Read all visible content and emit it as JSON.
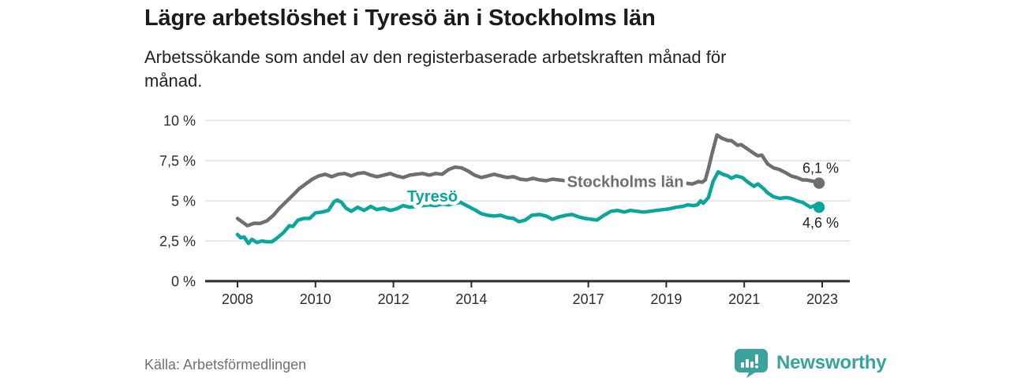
{
  "header": {
    "title": "Lägre arbetslöshet i Tyresö än i Stockholms län",
    "subtitle_line1": "Arbetssökande som andel av den registerbaserade arbetskraften månad för",
    "subtitle_line2": "månad."
  },
  "footer": {
    "source": "Källa: Arbetsförmedlingen",
    "brand": "Newsworthy"
  },
  "colors": {
    "tyreso_line": "#0aa59b",
    "stockholm_line": "#6e6e73",
    "axis": "#2b2b2e",
    "grid": "#d9d9d9",
    "tick_text": "#2d2d2d",
    "end_label_text": "#222222",
    "logo_teal": "#3ba29d"
  },
  "chart_data": {
    "type": "line",
    "title": "Lägre arbetslöshet i Tyresö än i Stockholms län",
    "subtitle": "Arbetssökande som andel av den registerbaserade arbetskraften månad för månad.",
    "xlabel": "",
    "ylabel": "",
    "xlim": [
      2007.2,
      2023.9
    ],
    "ylim": [
      0,
      10
    ],
    "grid": true,
    "legend_position": "inline-labels",
    "yticks": [
      {
        "v": 0,
        "label": "0 %"
      },
      {
        "v": 2.5,
        "label": "2,5 %"
      },
      {
        "v": 5,
        "label": "5 %"
      },
      {
        "v": 7.5,
        "label": "7,5 %"
      },
      {
        "v": 10,
        "label": "10 %"
      }
    ],
    "xticks": [
      {
        "v": 2008,
        "label": "2008"
      },
      {
        "v": 2010,
        "label": "2010"
      },
      {
        "v": 2012,
        "label": "2012"
      },
      {
        "v": 2014,
        "label": "2014"
      },
      {
        "v": 2017,
        "label": "2017"
      },
      {
        "v": 2019,
        "label": "2019"
      },
      {
        "v": 2021,
        "label": "2021"
      },
      {
        "v": 2023,
        "label": "2023"
      }
    ],
    "series": [
      {
        "name": "Stockholms län",
        "color": "#6e6e73",
        "end_label": "6,1 %",
        "end_label_position": "above",
        "label_anchor": {
          "year": 2017.95,
          "value": 6.2
        },
        "points": [
          [
            2008.0,
            3.9
          ],
          [
            2008.17,
            3.6
          ],
          [
            2008.25,
            3.45
          ],
          [
            2008.42,
            3.6
          ],
          [
            2008.58,
            3.6
          ],
          [
            2008.75,
            3.75
          ],
          [
            2008.92,
            4.1
          ],
          [
            2009.08,
            4.55
          ],
          [
            2009.25,
            4.95
          ],
          [
            2009.42,
            5.35
          ],
          [
            2009.58,
            5.75
          ],
          [
            2009.75,
            6.05
          ],
          [
            2009.92,
            6.35
          ],
          [
            2010.08,
            6.55
          ],
          [
            2010.25,
            6.65
          ],
          [
            2010.42,
            6.5
          ],
          [
            2010.58,
            6.65
          ],
          [
            2010.75,
            6.7
          ],
          [
            2010.92,
            6.55
          ],
          [
            2011.08,
            6.7
          ],
          [
            2011.25,
            6.75
          ],
          [
            2011.42,
            6.6
          ],
          [
            2011.58,
            6.5
          ],
          [
            2011.75,
            6.6
          ],
          [
            2011.92,
            6.7
          ],
          [
            2012.08,
            6.55
          ],
          [
            2012.25,
            6.45
          ],
          [
            2012.42,
            6.6
          ],
          [
            2012.58,
            6.65
          ],
          [
            2012.75,
            6.7
          ],
          [
            2012.92,
            6.6
          ],
          [
            2013.08,
            6.7
          ],
          [
            2013.25,
            6.65
          ],
          [
            2013.42,
            6.95
          ],
          [
            2013.58,
            7.1
          ],
          [
            2013.75,
            7.05
          ],
          [
            2013.92,
            6.85
          ],
          [
            2014.08,
            6.6
          ],
          [
            2014.25,
            6.45
          ],
          [
            2014.42,
            6.55
          ],
          [
            2014.58,
            6.65
          ],
          [
            2014.75,
            6.55
          ],
          [
            2014.92,
            6.45
          ],
          [
            2015.08,
            6.5
          ],
          [
            2015.25,
            6.35
          ],
          [
            2015.42,
            6.3
          ],
          [
            2015.58,
            6.4
          ],
          [
            2015.75,
            6.3
          ],
          [
            2015.92,
            6.25
          ],
          [
            2016.08,
            6.35
          ],
          [
            2016.25,
            6.3
          ],
          [
            2016.42,
            6.25
          ],
          [
            2016.58,
            6.2
          ],
          [
            2016.75,
            6.15
          ],
          [
            2016.92,
            6.1
          ],
          [
            2017.08,
            6.15
          ],
          [
            2017.25,
            6.1
          ],
          [
            2017.5,
            6.05
          ],
          [
            2017.75,
            6.0
          ],
          [
            2018.0,
            6.0
          ],
          [
            2018.25,
            6.05
          ],
          [
            2018.5,
            6.1
          ],
          [
            2018.75,
            6.05
          ],
          [
            2019.0,
            6.1
          ],
          [
            2019.25,
            6.15
          ],
          [
            2019.5,
            6.1
          ],
          [
            2019.67,
            6.05
          ],
          [
            2019.83,
            6.2
          ],
          [
            2019.92,
            6.15
          ],
          [
            2020.0,
            6.3
          ],
          [
            2020.08,
            7.0
          ],
          [
            2020.17,
            7.9
          ],
          [
            2020.3,
            9.1
          ],
          [
            2020.42,
            8.9
          ],
          [
            2020.58,
            8.75
          ],
          [
            2020.67,
            8.75
          ],
          [
            2020.83,
            8.45
          ],
          [
            2020.92,
            8.5
          ],
          [
            2021.1,
            8.2
          ],
          [
            2021.25,
            7.95
          ],
          [
            2021.35,
            7.8
          ],
          [
            2021.45,
            7.85
          ],
          [
            2021.6,
            7.3
          ],
          [
            2021.75,
            7.05
          ],
          [
            2021.9,
            6.95
          ],
          [
            2022.1,
            6.7
          ],
          [
            2022.2,
            6.55
          ],
          [
            2022.35,
            6.45
          ],
          [
            2022.5,
            6.3
          ],
          [
            2022.6,
            6.3
          ],
          [
            2022.7,
            6.25
          ],
          [
            2022.8,
            6.2
          ],
          [
            2022.92,
            6.1
          ]
        ]
      },
      {
        "name": "Tyresö",
        "color": "#0aa59b",
        "end_label": "4,6 %",
        "end_label_position": "below",
        "label_anchor": {
          "year": 2013.0,
          "value": 5.3
        },
        "points": [
          [
            2008.0,
            2.9
          ],
          [
            2008.08,
            2.7
          ],
          [
            2008.17,
            2.75
          ],
          [
            2008.28,
            2.35
          ],
          [
            2008.37,
            2.6
          ],
          [
            2008.5,
            2.4
          ],
          [
            2008.62,
            2.5
          ],
          [
            2008.75,
            2.45
          ],
          [
            2008.88,
            2.45
          ],
          [
            2009.0,
            2.65
          ],
          [
            2009.17,
            3.0
          ],
          [
            2009.33,
            3.45
          ],
          [
            2009.42,
            3.4
          ],
          [
            2009.55,
            3.8
          ],
          [
            2009.7,
            3.9
          ],
          [
            2009.85,
            3.9
          ],
          [
            2010.0,
            4.25
          ],
          [
            2010.17,
            4.3
          ],
          [
            2010.33,
            4.4
          ],
          [
            2010.48,
            4.95
          ],
          [
            2010.56,
            5.05
          ],
          [
            2010.67,
            4.9
          ],
          [
            2010.78,
            4.55
          ],
          [
            2010.92,
            4.35
          ],
          [
            2011.08,
            4.6
          ],
          [
            2011.25,
            4.4
          ],
          [
            2011.42,
            4.65
          ],
          [
            2011.58,
            4.45
          ],
          [
            2011.75,
            4.55
          ],
          [
            2011.92,
            4.4
          ],
          [
            2012.08,
            4.5
          ],
          [
            2012.25,
            4.7
          ],
          [
            2012.42,
            4.6
          ],
          [
            2012.58,
            4.65
          ],
          [
            2012.75,
            4.7
          ],
          [
            2012.92,
            4.75
          ],
          [
            2013.08,
            4.7
          ],
          [
            2013.25,
            4.8
          ],
          [
            2013.42,
            4.75
          ],
          [
            2013.58,
            4.85
          ],
          [
            2013.72,
            4.9
          ],
          [
            2013.92,
            4.65
          ],
          [
            2014.08,
            4.45
          ],
          [
            2014.25,
            4.2
          ],
          [
            2014.42,
            4.1
          ],
          [
            2014.58,
            4.05
          ],
          [
            2014.75,
            4.1
          ],
          [
            2014.92,
            3.95
          ],
          [
            2015.08,
            3.9
          ],
          [
            2015.22,
            3.7
          ],
          [
            2015.38,
            3.8
          ],
          [
            2015.55,
            4.1
          ],
          [
            2015.75,
            4.15
          ],
          [
            2015.92,
            4.05
          ],
          [
            2016.08,
            3.85
          ],
          [
            2016.25,
            4.0
          ],
          [
            2016.42,
            4.1
          ],
          [
            2016.58,
            4.15
          ],
          [
            2016.75,
            4.0
          ],
          [
            2016.92,
            3.9
          ],
          [
            2017.08,
            3.85
          ],
          [
            2017.22,
            3.8
          ],
          [
            2017.4,
            4.1
          ],
          [
            2017.58,
            4.35
          ],
          [
            2017.75,
            4.4
          ],
          [
            2017.92,
            4.3
          ],
          [
            2018.08,
            4.4
          ],
          [
            2018.25,
            4.35
          ],
          [
            2018.42,
            4.3
          ],
          [
            2018.58,
            4.35
          ],
          [
            2018.75,
            4.4
          ],
          [
            2018.92,
            4.45
          ],
          [
            2019.08,
            4.5
          ],
          [
            2019.25,
            4.6
          ],
          [
            2019.42,
            4.65
          ],
          [
            2019.55,
            4.75
          ],
          [
            2019.7,
            4.7
          ],
          [
            2019.8,
            4.75
          ],
          [
            2019.88,
            5.0
          ],
          [
            2019.95,
            4.85
          ],
          [
            2020.08,
            5.2
          ],
          [
            2020.2,
            6.2
          ],
          [
            2020.33,
            6.8
          ],
          [
            2020.45,
            6.65
          ],
          [
            2020.58,
            6.55
          ],
          [
            2020.67,
            6.4
          ],
          [
            2020.8,
            6.55
          ],
          [
            2020.95,
            6.45
          ],
          [
            2021.1,
            6.15
          ],
          [
            2021.25,
            5.9
          ],
          [
            2021.35,
            6.05
          ],
          [
            2021.5,
            5.75
          ],
          [
            2021.6,
            5.5
          ],
          [
            2021.75,
            5.25
          ],
          [
            2021.92,
            5.15
          ],
          [
            2022.08,
            5.2
          ],
          [
            2022.2,
            5.15
          ],
          [
            2022.35,
            5.0
          ],
          [
            2022.5,
            4.9
          ],
          [
            2022.6,
            4.75
          ],
          [
            2022.7,
            4.6
          ],
          [
            2022.8,
            4.7
          ],
          [
            2022.92,
            4.6
          ]
        ]
      }
    ]
  }
}
